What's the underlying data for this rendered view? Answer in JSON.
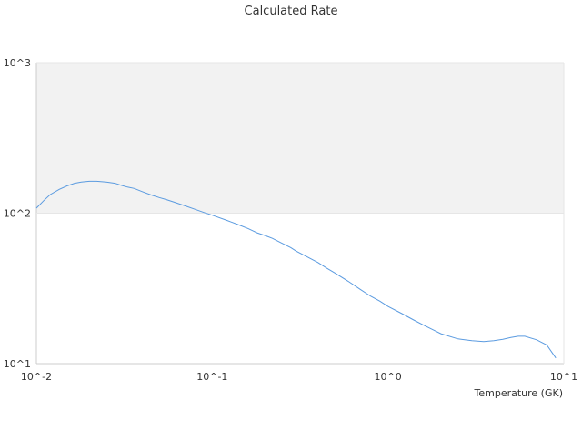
{
  "chart_data": {
    "type": "line",
    "title": "Calculated Rate",
    "xlabel": "Temperature (GK)",
    "ylabel": "",
    "x_scale": "log",
    "y_scale": "log",
    "xlim": [
      0.01,
      10
    ],
    "ylim": [
      10,
      1000
    ],
    "x_ticks": [
      {
        "value": 0.01,
        "label": "10^-2"
      },
      {
        "value": 0.1,
        "label": "10^-1"
      },
      {
        "value": 1,
        "label": "10^0"
      },
      {
        "value": 10,
        "label": "10^1"
      }
    ],
    "y_ticks": [
      {
        "value": 10,
        "label": "10^1"
      },
      {
        "value": 100,
        "label": "10^2"
      },
      {
        "value": 1000,
        "label": "10^3"
      }
    ],
    "grid": false,
    "shaded_band": [
      100,
      1000
    ],
    "colors": {
      "line": "#5b9be0",
      "band": "#f2f2f2",
      "axis": "#cccccc",
      "text": "#333333"
    },
    "series": [
      {
        "x": [
          0.01,
          0.011,
          0.012,
          0.0135,
          0.015,
          0.0165,
          0.018,
          0.02,
          0.022,
          0.025,
          0.028,
          0.03,
          0.033,
          0.036,
          0.04,
          0.045,
          0.05,
          0.055,
          0.06,
          0.07,
          0.08,
          0.09,
          0.1,
          0.12,
          0.14,
          0.16,
          0.18,
          0.2,
          0.22,
          0.25,
          0.28,
          0.3,
          0.35,
          0.4,
          0.45,
          0.5,
          0.6,
          0.7,
          0.8,
          0.9,
          1.0,
          1.2,
          1.4,
          1.6,
          1.8,
          2.0,
          2.5,
          3.0,
          3.5,
          4.0,
          4.5,
          5.0,
          5.5,
          6.0,
          7.0,
          8.0,
          9.0
        ],
        "y": [
          108,
          121,
          133,
          144,
          152,
          158,
          161,
          163,
          163,
          161,
          158,
          154,
          149,
          146,
          139,
          132,
          127,
          123,
          119,
          112,
          106,
          101,
          97,
          90,
          84,
          79,
          74,
          71,
          68,
          63,
          59,
          56,
          51,
          47,
          43,
          40,
          35,
          31,
          28,
          26,
          24,
          21.5,
          19.5,
          18,
          16.8,
          15.8,
          14.6,
          14.2,
          14.0,
          14.2,
          14.5,
          14.9,
          15.2,
          15.2,
          14.4,
          13.3,
          10.9
        ]
      }
    ]
  }
}
